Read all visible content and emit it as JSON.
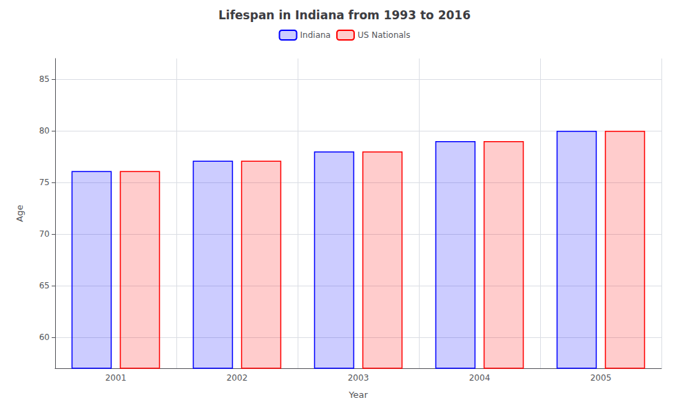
{
  "chart_data": {
    "type": "bar",
    "title": "Lifespan in Indiana from 1993 to 2016",
    "xlabel": "Year",
    "ylabel": "Age",
    "categories": [
      "2001",
      "2002",
      "2003",
      "2004",
      "2005"
    ],
    "series": [
      {
        "name": "Indiana",
        "color": "#0000ff",
        "values": [
          76.1,
          77.1,
          78.0,
          79.0,
          80.0
        ]
      },
      {
        "name": "US Nationals",
        "color": "#ff0000",
        "values": [
          76.1,
          77.1,
          78.0,
          79.0,
          80.0
        ]
      }
    ],
    "ylim": [
      57,
      87
    ],
    "yticks": [
      60,
      65,
      70,
      75,
      80,
      85
    ],
    "grid": true,
    "legend": "top"
  }
}
